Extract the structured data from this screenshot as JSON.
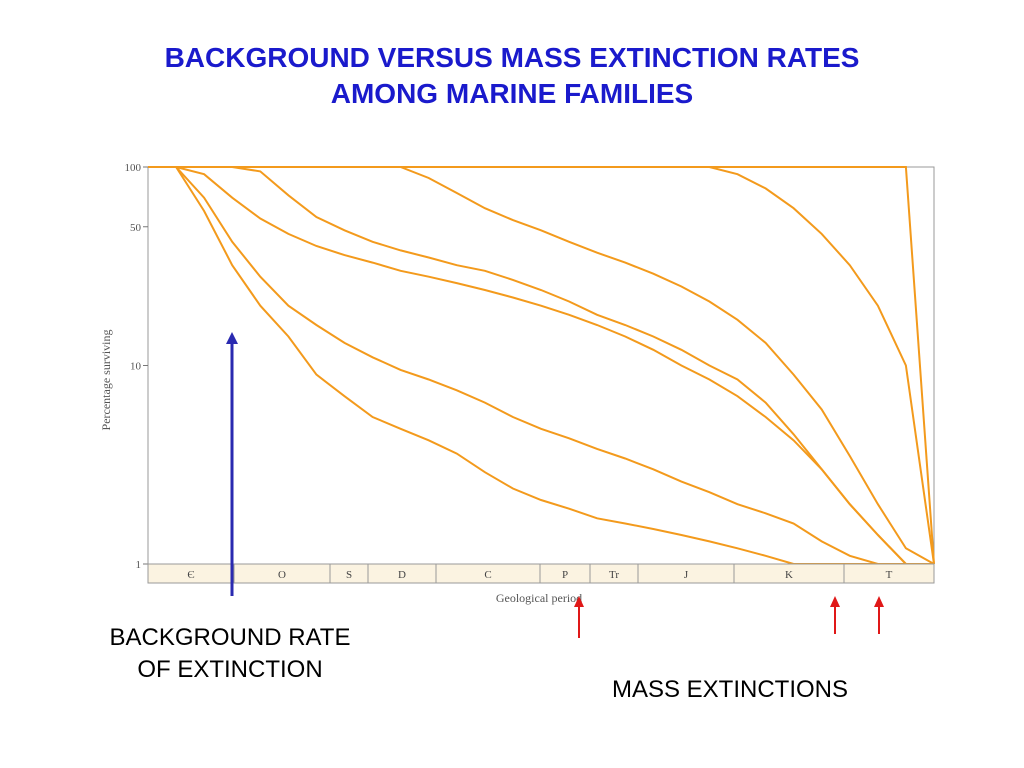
{
  "slide": {
    "title_line1": "BACKGROUND VERSUS MASS EXTINCTION RATES",
    "title_line2": "AMONG MARINE FAMILIES",
    "caption_background_line1": "BACKGROUND RATE",
    "caption_background_line2": "OF EXTINCTION",
    "caption_mass": "MASS EXTINCTIONS"
  },
  "colors": {
    "title": "#1a1acc",
    "series_line": "#f39a1c",
    "background_arrow": "#2a2ab0",
    "mass_arrow": "#e01818",
    "period_bar": "#fbf3e1"
  },
  "chart_data": {
    "type": "line",
    "title": "",
    "xlabel": "Geological period",
    "ylabel": "Percentage surviving",
    "yscale": "log",
    "ylim": [
      1,
      100
    ],
    "yticks": [
      100,
      50,
      10,
      1
    ],
    "grid": false,
    "periods": [
      "Є",
      "O",
      "S",
      "D",
      "C",
      "P",
      "Tr",
      "J",
      "K",
      "T"
    ],
    "mass_extinction_periods": [
      "P",
      "K",
      "T"
    ],
    "series": [
      {
        "values": [
          100,
          100,
          60,
          32,
          20,
          14,
          9,
          7,
          5.5,
          4.8,
          4.2,
          3.6,
          2.9,
          2.4,
          2.1,
          1.9,
          1.7,
          1.6,
          1.5,
          1.4,
          1.3,
          1.2,
          1.1,
          1.0,
          1.0,
          1.0,
          1.0,
          1.0,
          1.0
        ]
      },
      {
        "values": [
          100,
          100,
          70,
          42,
          28,
          20,
          16,
          13,
          11,
          9.5,
          8.5,
          7.5,
          6.5,
          5.5,
          4.8,
          4.3,
          3.8,
          3.4,
          3.0,
          2.6,
          2.3,
          2.0,
          1.8,
          1.6,
          1.3,
          1.1,
          1.0,
          1.0,
          1.0
        ]
      },
      {
        "values": [
          100,
          100,
          92,
          70,
          55,
          46,
          40,
          36,
          33,
          30,
          28,
          26,
          24,
          22,
          20,
          18,
          16,
          14,
          12,
          10,
          8.5,
          7,
          5.5,
          4.2,
          3,
          2,
          1.4,
          1.0,
          1.0
        ]
      },
      {
        "values": [
          100,
          100,
          100,
          100,
          95,
          72,
          56,
          48,
          42,
          38,
          35,
          32,
          30,
          27,
          24,
          21,
          18,
          16,
          14,
          12,
          10,
          8.5,
          6.5,
          4.5,
          3,
          2,
          1.4,
          1.0,
          1.0
        ]
      },
      {
        "values": [
          100,
          100,
          100,
          100,
          100,
          100,
          100,
          100,
          100,
          100,
          88,
          74,
          62,
          54,
          48,
          42,
          37,
          33,
          29,
          25,
          21,
          17,
          13,
          9,
          6,
          3.5,
          2,
          1.2,
          1.0
        ]
      },
      {
        "values": [
          100,
          100,
          100,
          100,
          100,
          100,
          100,
          100,
          100,
          100,
          100,
          100,
          100,
          100,
          100,
          100,
          100,
          100,
          100,
          100,
          100,
          92,
          78,
          62,
          46,
          32,
          20,
          10,
          1.0
        ]
      },
      {
        "values": [
          100,
          100,
          100,
          100,
          100,
          100,
          100,
          100,
          100,
          100,
          100,
          100,
          100,
          100,
          100,
          100,
          100,
          100,
          100,
          100,
          100,
          100,
          100,
          100,
          100,
          100,
          100,
          100,
          1.0
        ]
      }
    ]
  }
}
